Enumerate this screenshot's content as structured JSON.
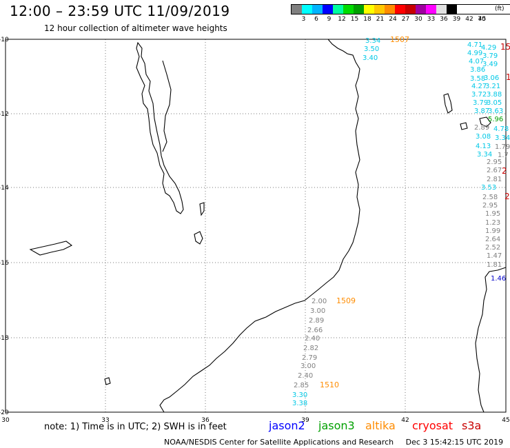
{
  "header": {
    "title": "12:00 – 23:59 UTC 11/09/2019",
    "subtitle": "12 hour collection of altimeter wave heights"
  },
  "scale": {
    "unit": "(ft)",
    "colors": [
      "#808080",
      "#00ffff",
      "#00b4ff",
      "#0000ff",
      "#00ffa0",
      "#00dc00",
      "#00a000",
      "#ffff00",
      "#ffc800",
      "#ff8c00",
      "#ff0000",
      "#c80000",
      "#a000a0",
      "#ff00ff",
      "#e0e0e0",
      "#000000"
    ],
    "ticks": [
      "3",
      "6",
      "9",
      "12",
      "15",
      "18",
      "21",
      "24",
      "27",
      "30",
      "33",
      "36",
      "39",
      "42",
      "45",
      "70"
    ]
  },
  "axes": {
    "lat_labels": [
      "-10",
      "-12",
      "-14",
      "-16",
      "-18",
      "-20"
    ],
    "lon_labels": [
      "30",
      "33",
      "36",
      "39",
      "42",
      "45"
    ]
  },
  "tracks": [
    {
      "id": "1507",
      "satellite": "altika",
      "values": [
        "3.34",
        "3.50",
        "3.40"
      ]
    },
    {
      "id": "1509",
      "satellite": "altika",
      "values": [
        "2.00",
        "3.00",
        "2.89",
        "2.66",
        "2.40",
        "2.82",
        "2.79",
        "3.00",
        "2.40",
        "2.85",
        "3.30",
        "3.38"
      ]
    },
    {
      "id": "1510",
      "satellite": "altika",
      "values": []
    },
    {
      "id": "east-cyan",
      "satellite": "",
      "values": [
        "4.71",
        "4.29",
        "4.99",
        "3.79",
        "4.07",
        "3.49",
        "3.86",
        "3.58",
        "3.06",
        "4.27",
        "3.21",
        "3.72",
        "3.88",
        "3.79",
        "3.05",
        "3.87",
        "3.63",
        "5.96",
        "2.89",
        "4.78",
        "3.08",
        "3.34",
        "4.13",
        "3.34",
        "3.53"
      ]
    },
    {
      "id": "east-gray",
      "satellite": "",
      "values": [
        "1.79",
        "1.7",
        "2.95",
        "2.67",
        "2.81",
        "2.58",
        "2.95",
        "1.95",
        "1.23",
        "1.99",
        "2.64",
        "2.52",
        "1.47",
        "1.81",
        "1.46"
      ]
    },
    {
      "id": "east-red",
      "satellite": "",
      "values": [
        "15",
        "1",
        "2",
        "2"
      ]
    }
  ],
  "legend": {
    "note": "note: 1) Time is in UTC; 2) SWH is in feet",
    "items": [
      {
        "label": "jason2",
        "color": "#0000ff"
      },
      {
        "label": "jason3",
        "color": "#00a000"
      },
      {
        "label": "altika",
        "color": "#ff8c00"
      },
      {
        "label": "cryosat",
        "color": "#ff0000"
      },
      {
        "label": "s3a",
        "color": "#c80000"
      }
    ]
  },
  "footer": {
    "credit": "NOAA/NESDIS Center for Satellite Applications and Research",
    "timestamp": "Dec  3 15:42:15 UTC 2019"
  }
}
